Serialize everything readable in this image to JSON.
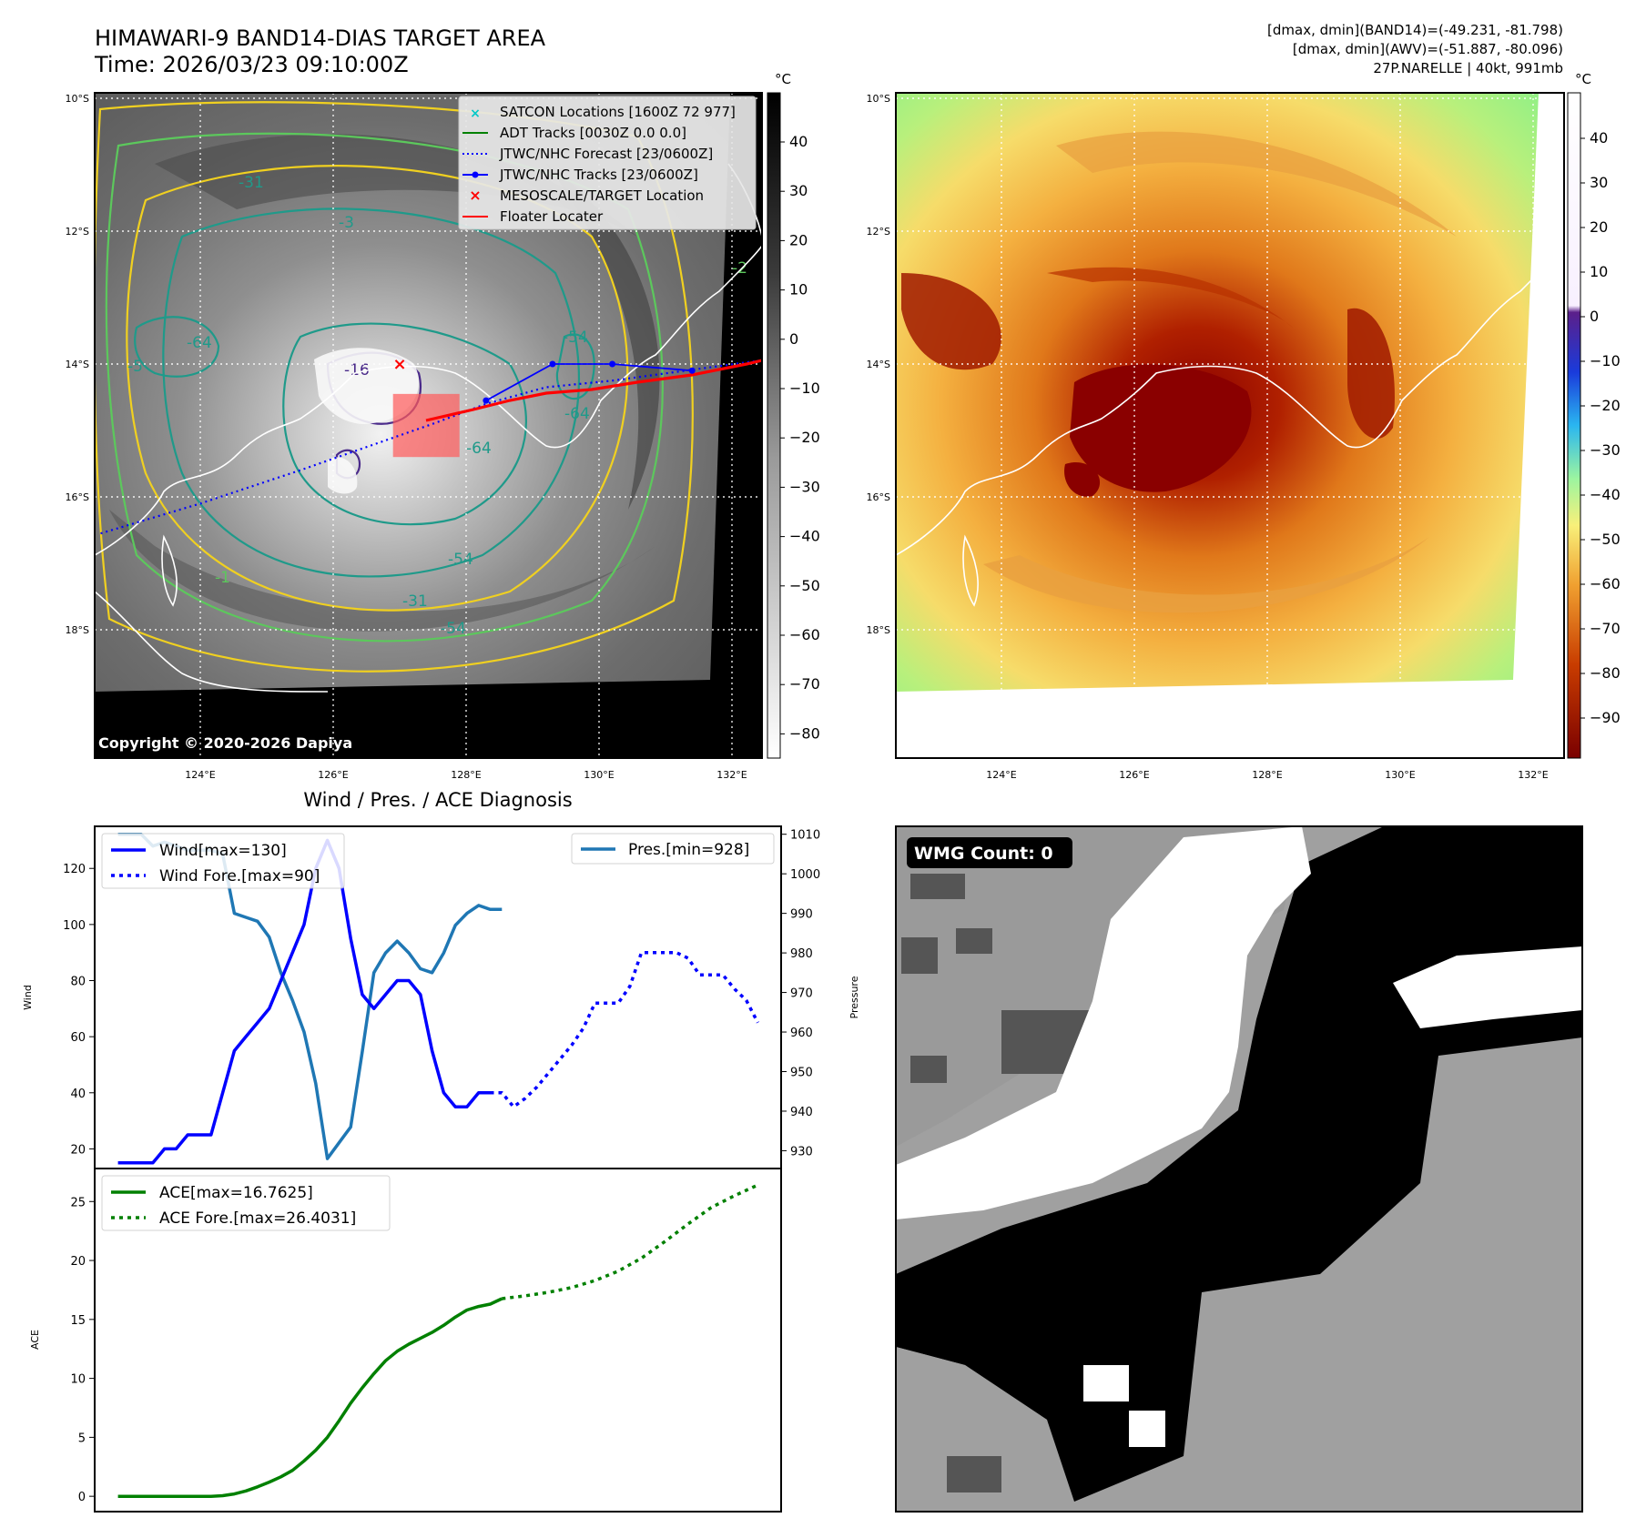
{
  "header": {
    "title": "HIMAWARI-9 BAND14-DIAS TARGET AREA",
    "time": "Time: 2026/03/23 09:10:00Z",
    "stats_band14": "[dmax, dmin](BAND14)=(-49.231, -81.798)",
    "stats_awv": "[dmax, dmin](AWV)=(-51.887, -80.096)",
    "storm_info": "27P.NARELLE | 40kt, 991mb"
  },
  "map": {
    "lat_labels": [
      "10°S",
      "12°S",
      "14°S",
      "16°S",
      "18°S"
    ],
    "lon_labels": [
      "124°E",
      "126°E",
      "128°E",
      "130°E",
      "132°E"
    ],
    "colorbar_unit": "°C",
    "left_colorbar_ticks": [
      "40",
      "30",
      "20",
      "10",
      "0",
      "−10",
      "−20",
      "−30",
      "−40",
      "−50",
      "−60",
      "−70",
      "−80"
    ],
    "right_colorbar_ticks": [
      "40",
      "30",
      "20",
      "10",
      "0",
      "−10",
      "−20",
      "−30",
      "−40",
      "−50",
      "−60",
      "−70",
      "−80",
      "−90"
    ],
    "copyright": "Copyright © 2020-2026 Dapiya",
    "contour_labels": [
      "-31",
      "-3",
      "-64",
      "-5",
      "-16",
      "-54",
      "-64",
      "-64",
      "-54",
      "-31",
      "-54",
      "-2",
      "-1"
    ],
    "legend": [
      {
        "label": "SATCON Locations [1600Z 72 977]",
        "color": "#00c8c8",
        "marker": "x"
      },
      {
        "label": "ADT Tracks [0030Z 0.0 0.0]",
        "color": "#008000",
        "marker": "line"
      },
      {
        "label": "JTWC/NHC Forecast [23/0600Z]",
        "color": "#0000ff",
        "marker": "dotted"
      },
      {
        "label": "JTWC/NHC Tracks [23/0600Z]",
        "color": "#0000ff",
        "marker": "line-dot"
      },
      {
        "label": "MESOSCALE/TARGET Location",
        "color": "#ff0000",
        "marker": "x"
      },
      {
        "label": "Floater Locater",
        "color": "#ff0000",
        "marker": "line"
      }
    ],
    "forecast_track": [
      [
        122.5,
        16.55
      ],
      [
        124.0,
        16.1
      ],
      [
        125.5,
        15.6
      ],
      [
        126.5,
        15.25
      ],
      [
        127.5,
        14.9
      ],
      [
        128.3,
        14.6
      ],
      [
        129.2,
        14.35
      ],
      [
        130.2,
        14.25
      ],
      [
        131.3,
        14.1
      ],
      [
        132.4,
        13.95
      ]
    ],
    "observed_track": [
      [
        128.3,
        14.55
      ],
      [
        129.3,
        14.0
      ],
      [
        130.2,
        14.0
      ],
      [
        131.4,
        14.1
      ]
    ],
    "target_location": [
      127.0,
      14.0
    ],
    "target_box": {
      "lon": [
        126.9,
        127.9
      ],
      "lat": [
        14.45,
        15.4
      ]
    }
  },
  "wmg": {
    "label": "WMG Count: 0"
  },
  "chart_data": [
    {
      "type": "line",
      "title": "Wind / Pres. / ACE Diagnosis",
      "ylabel": "Wind",
      "y2label": "Pressure",
      "ylim": [
        13,
        135
      ],
      "y2lim": [
        925.5,
        1012
      ],
      "yticks": [
        "20",
        "40",
        "60",
        "80",
        "100",
        "120"
      ],
      "y2ticks": [
        "930",
        "940",
        "950",
        "960",
        "970",
        "980",
        "990",
        "1000",
        "1010"
      ],
      "series": [
        {
          "name": "Wind[max=130]",
          "color": "#0000ff",
          "style": "solid",
          "x": [
            0,
            1,
            2,
            3,
            4,
            5,
            6,
            7,
            8,
            9,
            10,
            11,
            12,
            13,
            14,
            15,
            16,
            17,
            18,
            19,
            20,
            21,
            22,
            23,
            24,
            25,
            26,
            27,
            28,
            29,
            30,
            31,
            32,
            33,
            34,
            35,
            36
          ],
          "values": [
            15,
            15,
            15,
            15,
            20,
            20,
            25,
            25,
            25,
            40,
            55,
            60,
            65,
            70,
            80,
            90,
            100,
            120,
            130,
            120,
            95,
            75,
            70,
            75,
            80,
            80,
            75,
            55,
            40,
            35,
            35,
            40,
            40,
            null,
            null,
            null,
            null
          ]
        },
        {
          "name": "Wind Fore.[max=90]",
          "color": "#0000ff",
          "style": "dotted",
          "x": [
            32,
            33,
            34,
            35,
            36,
            37,
            38,
            39,
            40,
            41,
            42,
            43,
            44,
            45,
            46,
            47,
            48,
            49,
            50,
            51,
            52,
            53,
            54,
            55
          ],
          "values": [
            40,
            40,
            35,
            38,
            42,
            47,
            52,
            57,
            63,
            72,
            72,
            72,
            78,
            90,
            90,
            90,
            90,
            88,
            82,
            82,
            82,
            77,
            73,
            65
          ]
        },
        {
          "name": "Pres.[min=928]",
          "color": "#1f77b4",
          "style": "solid",
          "axis": "right",
          "x": [
            0,
            1,
            2,
            3,
            4,
            5,
            6,
            7,
            8,
            9,
            10,
            11,
            12,
            13,
            14,
            15,
            16,
            17,
            18,
            19,
            20,
            21,
            22,
            23,
            24,
            25,
            26,
            27,
            28,
            29,
            30,
            31,
            32,
            33
          ],
          "values": [
            1010,
            1010,
            1010,
            1007,
            1008,
            1007,
            1006,
            1006,
            1006,
            1005,
            990,
            989,
            988,
            984,
            975,
            968,
            960,
            947,
            928,
            932,
            936,
            955,
            975,
            980,
            983,
            980,
            976,
            975,
            980,
            987,
            990,
            992,
            991,
            991
          ]
        }
      ]
    },
    {
      "type": "line",
      "ylabel": "ACE",
      "ylim": [
        -1.3,
        27.8
      ],
      "yticks": [
        "0",
        "5",
        "10",
        "15",
        "20",
        "25"
      ],
      "series": [
        {
          "name": "ACE[max=16.7625]",
          "color": "#008000",
          "style": "solid",
          "x": [
            0,
            2,
            4,
            6,
            8,
            9,
            10,
            11,
            12,
            13,
            14,
            15,
            16,
            17,
            18,
            19,
            20,
            21,
            22,
            23,
            24,
            25,
            26,
            27,
            28,
            29,
            30,
            31,
            32,
            33
          ],
          "values": [
            0,
            0,
            0,
            0,
            0,
            0.05,
            0.2,
            0.45,
            0.8,
            1.2,
            1.65,
            2.2,
            3,
            3.9,
            5,
            6.4,
            7.9,
            9.2,
            10.4,
            11.5,
            12.3,
            12.9,
            13.4,
            13.9,
            14.5,
            15.2,
            15.8,
            16.1,
            16.3,
            16.76
          ]
        },
        {
          "name": "ACE Fore.[max=26.4031]",
          "color": "#008000",
          "style": "dotted",
          "x": [
            33,
            35,
            37,
            39,
            41,
            43,
            45,
            47,
            49,
            51,
            53,
            55
          ],
          "values": [
            16.76,
            17.0,
            17.3,
            17.7,
            18.3,
            19.1,
            20.2,
            21.6,
            23.1,
            24.5,
            25.5,
            26.4
          ]
        }
      ]
    }
  ]
}
